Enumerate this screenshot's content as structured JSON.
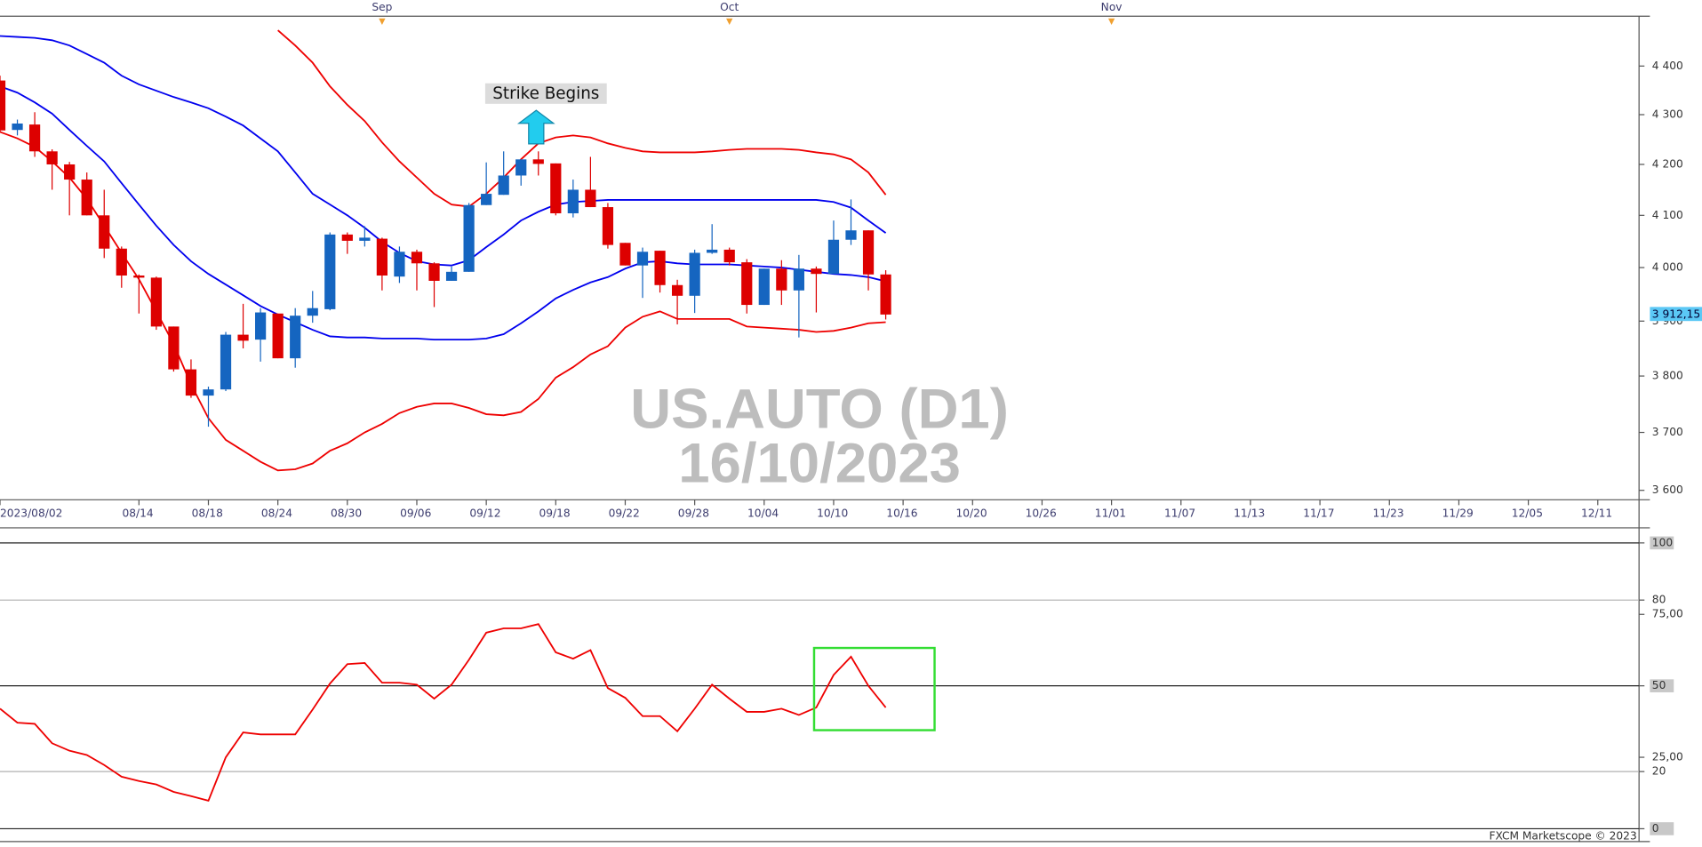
{
  "chart_data": [
    {
      "type": "candlestick",
      "title": "US.AUTO (D1)",
      "subtitle": "16/10/2023",
      "annotation": "Strike Begins",
      "x": [
        0,
        1,
        2,
        3,
        4,
        5,
        6,
        7,
        8,
        9,
        10,
        11,
        12,
        13,
        14,
        15,
        16,
        17,
        18,
        19,
        20,
        21,
        22,
        23,
        24,
        25,
        26,
        27,
        28,
        29,
        30,
        31,
        32,
        33,
        34,
        35,
        36,
        37,
        38,
        39,
        40,
        41,
        42,
        43,
        44,
        45,
        46,
        47,
        48,
        49,
        50,
        51
      ],
      "open": [
        4370,
        4269,
        4280,
        4226,
        4200,
        4170,
        4100,
        4036,
        3985,
        3981,
        3890,
        3812,
        3765,
        3776,
        3875,
        3866,
        3914,
        3832,
        3910,
        3922,
        4063,
        4051,
        4055,
        3983,
        4030,
        4008,
        3975,
        3992,
        4120,
        4140,
        4178,
        4210,
        4202,
        4104,
        4150,
        4116,
        4047,
        4004,
        4032,
        3967,
        3947,
        4028,
        4034,
        4010,
        3930,
        3998,
        3957,
        3998,
        3988,
        4053,
        4071,
        3987
      ],
      "high": [
        4380,
        4290,
        4305,
        4230,
        4205,
        4184,
        4150,
        4040,
        3987,
        3983,
        3890,
        3830,
        3781,
        3880,
        3932,
        3924,
        3914,
        3924,
        3956,
        4067,
        4067,
        4079,
        4057,
        4040,
        4034,
        4010,
        4002,
        4124,
        4204,
        4226,
        4210,
        4226,
        4202,
        4170,
        4215,
        4124,
        4047,
        4038,
        4032,
        3977,
        4034,
        4083,
        4038,
        4016,
        3998,
        4014,
        4024,
        4002,
        4090,
        4131,
        4071,
        3995
      ],
      "low": [
        4265,
        4258,
        4215,
        4150,
        4100,
        4100,
        4018,
        3962,
        3914,
        3884,
        3808,
        3761,
        3710,
        3773,
        3850,
        3826,
        3832,
        3815,
        3897,
        3920,
        4026,
        4040,
        3957,
        3971,
        3957,
        3926,
        3975,
        3992,
        4120,
        4140,
        4158,
        4178,
        4100,
        4096,
        4116,
        4036,
        4004,
        3943,
        3953,
        3894,
        3915,
        4026,
        4004,
        3914,
        3930,
        3930,
        3870,
        3916,
        3988,
        4043,
        3957,
        3903
      ],
      "close": [
        4268,
        4282,
        4226,
        4200,
        4170,
        4100,
        4036,
        3985,
        3981,
        3890,
        3812,
        3765,
        3776,
        3875,
        3864,
        3916,
        3832,
        3910,
        3924,
        4063,
        4051,
        4057,
        3985,
        4030,
        4008,
        3975,
        3992,
        4120,
        4142,
        4178,
        4210,
        4201,
        4104,
        4150,
        4116,
        4043,
        4004,
        4030,
        3967,
        3947,
        4028,
        4034,
        4010,
        3930,
        3998,
        3957,
        3998,
        3988,
        4053,
        4071,
        3987,
        3912.15
      ],
      "up_color": "#1565c0",
      "down_color": "#dd0000",
      "series": [
        {
          "color": "#0000ee",
          "values": [
            4463,
            4461,
            4459,
            4454,
            4443,
            4425,
            4407,
            4380,
            4362,
            4349,
            4336,
            4325,
            4313,
            4296,
            4278,
            4252,
            4226,
            4184,
            4142,
            4121,
            4100,
            4076,
            4049,
            4028,
            4012,
            4006,
            4004,
            4014,
            4039,
            4063,
            4090,
            4107,
            4121,
            4126,
            4128,
            4130,
            4130,
            4130,
            4130,
            4130,
            4130,
            4130,
            4130,
            4130,
            4130,
            4130,
            4130,
            4130,
            4126,
            4115,
            4090,
            4066
          ]
        },
        {
          "color": "#0000ee",
          "values": [
            4358,
            4345,
            4325,
            4302,
            4269,
            4237,
            4206,
            4163,
            4121,
            4080,
            4043,
            4012,
            3988,
            3968,
            3948,
            3928,
            3912,
            3898,
            3884,
            3872,
            3870,
            3870,
            3868,
            3868,
            3868,
            3866,
            3866,
            3866,
            3868,
            3876,
            3896,
            3918,
            3942,
            3958,
            3972,
            3982,
            3998,
            4010,
            4012,
            4008,
            4006,
            4006,
            4006,
            4004,
            4002,
            4000,
            3996,
            3992,
            3988,
            3986,
            3982,
            3974
          ]
        },
        {
          "color": "#ee0000",
          "values": [
            null,
            null,
            null,
            null,
            null,
            null,
            null,
            null,
            null,
            null,
            null,
            null,
            null,
            null,
            null,
            null,
            4475,
            4443,
            4407,
            4358,
            4320,
            4287,
            4244,
            4206,
            4174,
            4142,
            4121,
            4117,
            4142,
            4174,
            4210,
            4242,
            4254,
            4258,
            4254,
            4242,
            4233,
            4226,
            4224,
            4224,
            4224,
            4226,
            4229,
            4231,
            4231,
            4231,
            4229,
            4224,
            4220,
            4210,
            4184,
            4140
          ]
        },
        {
          "color": "#ee0000",
          "values": [
            4265,
            4252,
            4235,
            4206,
            4174,
            4132,
            4080,
            4028,
            3978,
            3918,
            3858,
            3785,
            3725,
            3687,
            3668,
            3649,
            3634,
            3636,
            3646,
            3668,
            3681,
            3700,
            3715,
            3734,
            3745,
            3751,
            3751,
            3743,
            3732,
            3730,
            3736,
            3759,
            3797,
            3816,
            3839,
            3854,
            3888,
            3908,
            3918,
            3904,
            3904,
            3904,
            3904,
            3890,
            3888,
            3886,
            3884,
            3880,
            3882,
            3888,
            3896,
            3898
          ]
        }
      ],
      "log_scale": true,
      "ylim": [
        3584,
        4498
      ],
      "yticks": [
        {
          "value": 3600,
          "label": "3 600"
        },
        {
          "value": 3700,
          "label": "3 700"
        },
        {
          "value": 3800,
          "label": "3 800"
        },
        {
          "value": 3900,
          "label": "3 900"
        },
        {
          "value": 4000,
          "label": "4 000"
        },
        {
          "value": 4100,
          "label": "4 100"
        },
        {
          "value": 4200,
          "label": "4 200"
        },
        {
          "value": 4300,
          "label": "4 300"
        },
        {
          "value": 4400,
          "label": "4 400"
        }
      ],
      "last_price": {
        "value": 3912.15,
        "label": "3 912,15"
      },
      "xlim": [
        0,
        94.375
      ],
      "xticks": [
        {
          "value": 0,
          "label": "2023/08/02"
        },
        {
          "value": 8,
          "label": "08/14"
        },
        {
          "value": 12,
          "label": "08/18"
        },
        {
          "value": 16,
          "label": "08/24"
        },
        {
          "value": 20,
          "label": "08/30"
        },
        {
          "value": 24,
          "label": "09/06"
        },
        {
          "value": 28,
          "label": "09/12"
        },
        {
          "value": 32,
          "label": "09/18"
        },
        {
          "value": 36,
          "label": "09/22"
        },
        {
          "value": 40,
          "label": "09/28"
        },
        {
          "value": 44,
          "label": "10/04"
        },
        {
          "value": 48,
          "label": "10/10"
        },
        {
          "value": 52,
          "label": "10/16"
        },
        {
          "value": 56,
          "label": "10/20"
        },
        {
          "value": 60,
          "label": "10/26"
        },
        {
          "value": 64,
          "label": "11/01"
        },
        {
          "value": 68,
          "label": "11/07"
        },
        {
          "value": 72,
          "label": "11/13"
        },
        {
          "value": 76,
          "label": "11/17"
        },
        {
          "value": 80,
          "label": "11/23"
        },
        {
          "value": 84,
          "label": "11/29"
        },
        {
          "value": 88,
          "label": "12/05"
        },
        {
          "value": 92,
          "label": "12/11"
        }
      ],
      "month_ticks": [
        {
          "value": 22,
          "label": "Sep"
        },
        {
          "value": 42,
          "label": "Oct"
        },
        {
          "value": 64,
          "label": "Nov"
        }
      ]
    },
    {
      "type": "line",
      "x": [
        0,
        1,
        2,
        3,
        4,
        5,
        6,
        7,
        8,
        9,
        10,
        11,
        12,
        13,
        14,
        15,
        16,
        17,
        18,
        19,
        20,
        21,
        22,
        23,
        24,
        25,
        26,
        27,
        28,
        29,
        30,
        31,
        32,
        33,
        34,
        35,
        36,
        37,
        38,
        39,
        40,
        41,
        42,
        43,
        44,
        45,
        46,
        47,
        48,
        49,
        50,
        51
      ],
      "series": [
        {
          "color": "#ee0000",
          "values": [
            42.0,
            37.1,
            36.7,
            29.9,
            27.3,
            25.8,
            22.3,
            18.2,
            16.7,
            15.5,
            12.9,
            11.4,
            9.8,
            25.0,
            33.7,
            33.0,
            33.0,
            33.0,
            41.7,
            50.8,
            57.6,
            58.0,
            51.1,
            51.1,
            50.4,
            45.5,
            50.4,
            59.1,
            68.6,
            70.1,
            70.1,
            71.6,
            61.7,
            59.5,
            62.5,
            49.2,
            45.8,
            39.4,
            39.4,
            34.1,
            42.0,
            50.4,
            45.5,
            40.9,
            40.9,
            42.0,
            39.8,
            42.4,
            53.8,
            60.2,
            50.0,
            42.4
          ]
        }
      ],
      "xlim": [
        0,
        94.375
      ],
      "ylim": [
        -4.5,
        104.5
      ],
      "yticks": [
        0,
        20,
        {
          "value": 25,
          "label": "25,00"
        },
        50,
        {
          "value": 75,
          "label": "75,00"
        },
        80,
        100
      ],
      "reference_lines": [
        {
          "value": 0,
          "color": "#222222"
        },
        {
          "value": 20,
          "color": "#b0b0b0"
        },
        {
          "value": 50,
          "color": "#222222"
        },
        {
          "value": 80,
          "color": "#b0b0b0"
        },
        {
          "value": 100,
          "color": "#222222"
        }
      ]
    }
  ],
  "footer": "FXCM Marketscope © 2023"
}
